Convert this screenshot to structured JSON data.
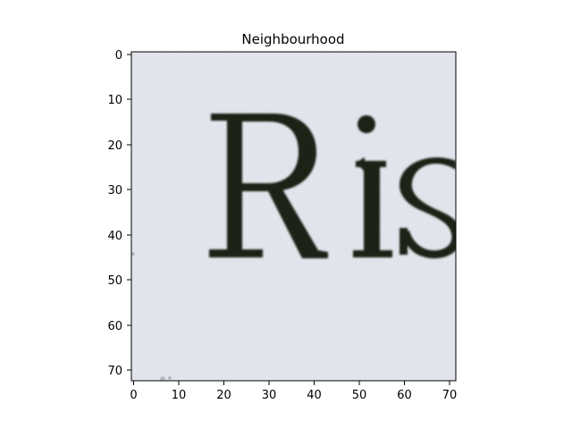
{
  "title": "Neighbourhood",
  "image": {
    "subject": "scanned serif text crop",
    "visible_text": "Ris",
    "paper_color": "#dfe2ea",
    "ink_color": "#1a2218"
  },
  "axes": {
    "x_ticks": [
      "0",
      "10",
      "20",
      "30",
      "40",
      "50",
      "60",
      "70"
    ],
    "y_ticks": [
      "0",
      "10",
      "20",
      "30",
      "40",
      "50",
      "60",
      "70"
    ]
  }
}
